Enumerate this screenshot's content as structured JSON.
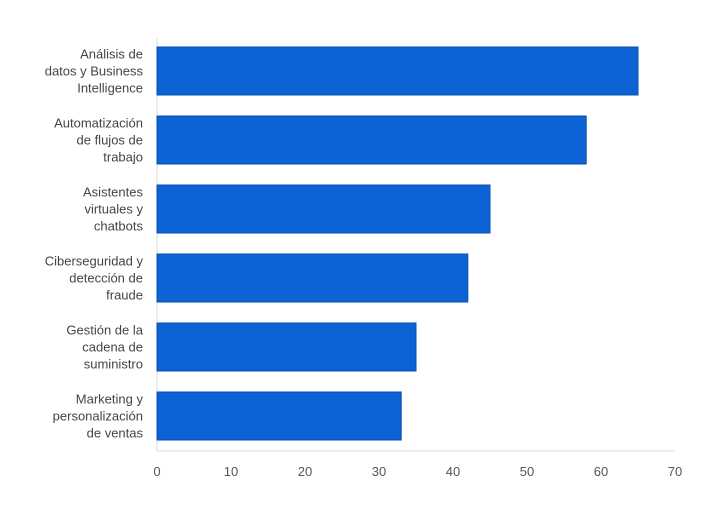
{
  "chart_data": {
    "type": "bar",
    "orientation": "horizontal",
    "title": "",
    "xlabel": "",
    "ylabel": "",
    "categories": [
      [
        "Análisis de",
        "datos y Business",
        "Intelligence"
      ],
      [
        "Automatización",
        "de flujos de",
        "trabajo"
      ],
      [
        "Asistentes",
        "virtuales y",
        "chatbots"
      ],
      [
        "Ciberseguridad y",
        "detección de",
        "fraude"
      ],
      [
        "Gestión de la",
        "cadena de",
        "suministro"
      ],
      [
        "Marketing y",
        "personalización",
        "de ventas"
      ]
    ],
    "values": [
      65,
      58,
      45,
      42,
      35,
      33
    ],
    "xlim": [
      0,
      70
    ],
    "x_ticks": [
      "0",
      "10",
      "20",
      "30",
      "40",
      "50",
      "60",
      "70"
    ],
    "grid": false,
    "bar_color": "#0b63d6",
    "bar_edge_color": "#0a4fae",
    "axis_color": "#dddddd"
  }
}
